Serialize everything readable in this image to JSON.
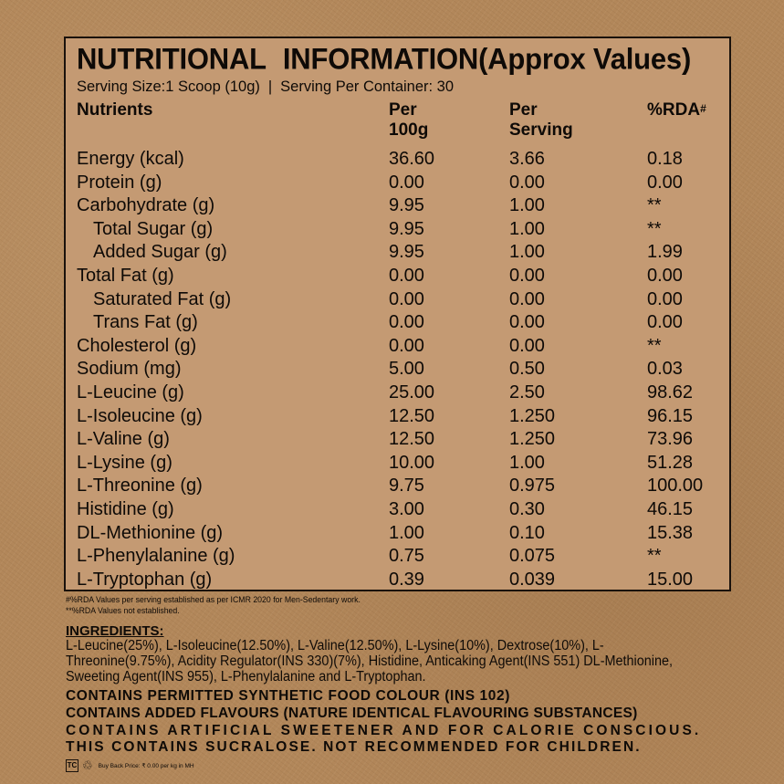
{
  "panel": {
    "title_part1": "NUTRITIONAL",
    "title_part2": "INFORMATION(Approx Values)",
    "serving_size": "Serving Size:1 Scoop (10g)",
    "separator": "|",
    "servings_per_container": "Serving Per Container: 30",
    "headers": {
      "nutrients": "Nutrients",
      "per100_line1": "Per",
      "per100_line2": "100g",
      "perserving_line1": "Per",
      "perserving_line2": "Serving",
      "rda": "%RDA",
      "rda_mark": "#"
    },
    "rows": [
      {
        "name": "Energy (kcal)",
        "per100": "36.60",
        "perserving": "3.66",
        "rda": "0.18"
      },
      {
        "name": "Protein (g)",
        "per100": "0.00",
        "perserving": "0.00",
        "rda": "0.00"
      },
      {
        "name": "Carbohydrate (g)",
        "per100": "9.95",
        "perserving": "1.00",
        "rda": "**"
      },
      {
        "name": "Total Sugar (g)",
        "per100": "9.95",
        "perserving": "1.00",
        "rda": "**"
      },
      {
        "name": "Added Sugar (g)",
        "per100": "9.95",
        "perserving": "1.00",
        "rda": "1.99"
      },
      {
        "name": "Total Fat (g)",
        "per100": "0.00",
        "perserving": "0.00",
        "rda": "0.00"
      },
      {
        "name": "Saturated Fat (g)",
        "per100": "0.00",
        "perserving": "0.00",
        "rda": "0.00"
      },
      {
        "name": "Trans Fat (g)",
        "per100": "0.00",
        "perserving": "0.00",
        "rda": "0.00"
      },
      {
        "name": "Cholesterol (g)",
        "per100": "0.00",
        "perserving": "0.00",
        "rda": "**"
      },
      {
        "name": "Sodium (mg)",
        "per100": "5.00",
        "perserving": "0.50",
        "rda": "0.03"
      },
      {
        "name": "L-Leucine (g)",
        "per100": "25.00",
        "perserving": "2.50",
        "rda": "98.62"
      },
      {
        "name": "L-Isoleucine (g)",
        "per100": "12.50",
        "perserving": "1.250",
        "rda": "96.15"
      },
      {
        "name": "L-Valine (g)",
        "per100": "12.50",
        "perserving": "1.250",
        "rda": "73.96"
      },
      {
        "name": "L-Lysine (g)",
        "per100": "10.00",
        "perserving": "1.00",
        "rda": "51.28"
      },
      {
        "name": "L-Threonine (g)",
        "per100": "9.75",
        "perserving": "0.975",
        "rda": "100.00"
      },
      {
        "name": "Histidine (g)",
        "per100": "3.00",
        "perserving": "0.30",
        "rda": "46.15"
      },
      {
        "name": "DL-Methionine (g)",
        "per100": "1.00",
        "perserving": "0.10",
        "rda": "15.38"
      },
      {
        "name": "L-Phenylalanine (g)",
        "per100": "0.75",
        "perserving": "0.075",
        "rda": "**"
      },
      {
        "name": "L-Tryptophan (g)",
        "per100": "0.39",
        "perserving": "0.039",
        "rda": "15.00"
      }
    ]
  },
  "footnotes": {
    "line1": "#%RDA Values per serving established as per ICMR 2020 for Men-Sedentary work.",
    "line2": "**%RDA Values not established."
  },
  "ingredients": {
    "title": "INGREDIENTS:",
    "text": "L-Leucine(25%), L-Isoleucine(12.50%), L-Valine(12.50%), L-Lysine(10%), Dextrose(10%), L-Threonine(9.75%), Acidity Regulator(INS 330)(7%), Histidine, Anticaking Agent(INS 551) DL-Methionine, Sweeting Agent(INS 955), L-Phenylalanine and L-Tryptophan."
  },
  "warnings": {
    "line1": "CONTAINS PERMITTED SYNTHETIC FOOD COLOUR (INS 102)",
    "line2": "CONTAINS ADDED FLAVOURS (NATURE IDENTICAL FLAVOURING SUBSTANCES)",
    "line3": "CONTAINS ARTIFICIAL SWEETENER AND FOR CALORIE CONSCIOUS.",
    "line4": "THIS CONTAINS SUCRALOSE. NOT RECOMMENDED FOR CHILDREN."
  },
  "bottom": {
    "logo_text": "TC",
    "recycle_symbol": "♲",
    "buyback_text": "Buy Back Price: ₹ 0.00 per kg in MH"
  }
}
